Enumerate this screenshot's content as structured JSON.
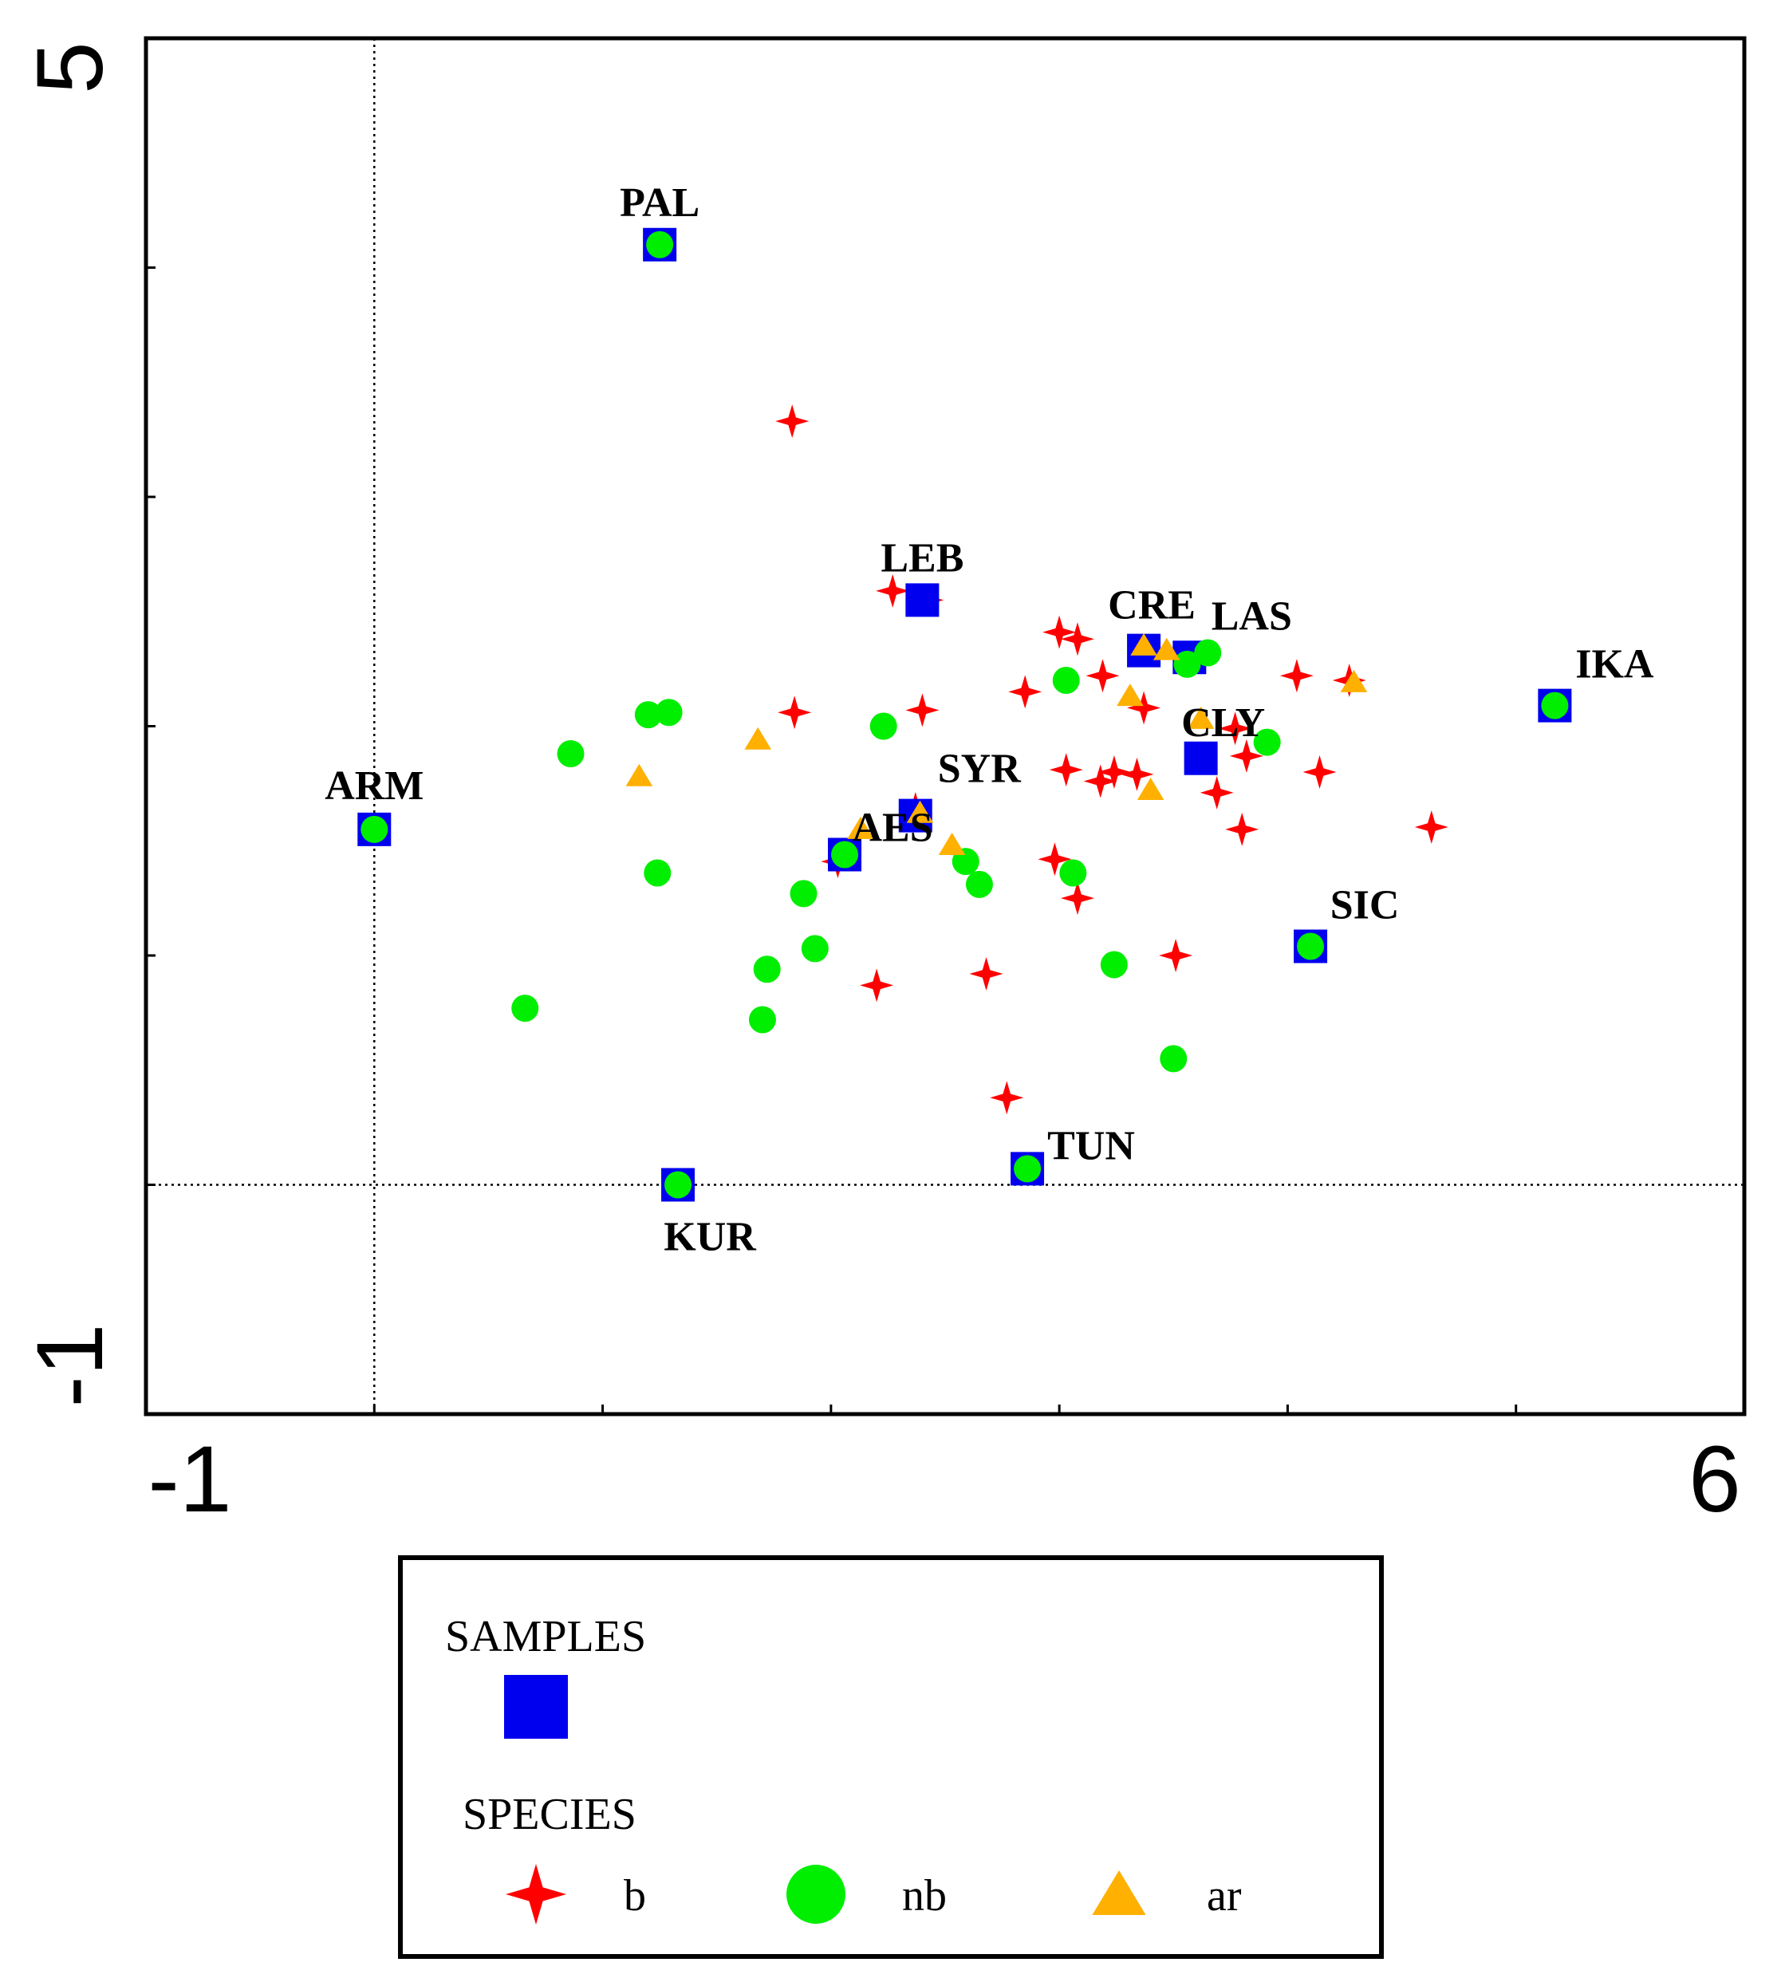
{
  "chart_data": {
    "type": "scatter",
    "title": "",
    "xlabel": "",
    "ylabel": "",
    "xlim": [
      -1,
      6
    ],
    "ylim": [
      -1,
      5
    ],
    "x_tick_labels": [
      "-1",
      "6"
    ],
    "y_tick_labels": [
      "-1",
      "5"
    ],
    "reference_lines": {
      "x": 0,
      "y": 0
    },
    "grid": false,
    "legend_position": "bottom",
    "legend": {
      "samples_heading": "SAMPLES",
      "species_heading": "SPECIES",
      "entries": [
        {
          "key": "b",
          "label": "b",
          "marker": "star",
          "color": "#ff0000"
        },
        {
          "key": "nb",
          "label": "nb",
          "marker": "circle",
          "color": "#00ee00"
        },
        {
          "key": "ar",
          "label": "ar",
          "marker": "triangle",
          "color": "#ffb000"
        }
      ],
      "samples_color": "#0000ee"
    },
    "samples": [
      {
        "name": "PAL",
        "x": 1.25,
        "y": 4.1
      },
      {
        "name": "ARM",
        "x": 0.0,
        "y": 1.55
      },
      {
        "name": "LEB",
        "x": 2.4,
        "y": 2.55
      },
      {
        "name": "CRE",
        "x": 3.37,
        "y": 2.33
      },
      {
        "name": "LAS",
        "x": 3.57,
        "y": 2.3
      },
      {
        "name": "IKA",
        "x": 5.17,
        "y": 2.09
      },
      {
        "name": "CLY",
        "x": 3.62,
        "y": 1.86
      },
      {
        "name": "SYR",
        "x": 2.37,
        "y": 1.61
      },
      {
        "name": "AES",
        "x": 2.06,
        "y": 1.44
      },
      {
        "name": "SIC",
        "x": 4.1,
        "y": 1.04
      },
      {
        "name": "TUN",
        "x": 2.86,
        "y": 0.07
      },
      {
        "name": "KUR",
        "x": 1.33,
        "y": 0.0
      }
    ],
    "series": [
      {
        "name": "b",
        "points": [
          [
            1.83,
            3.33
          ],
          [
            2.27,
            2.59
          ],
          [
            2.42,
            2.55
          ],
          [
            1.84,
            2.06
          ],
          [
            2.4,
            2.07
          ],
          [
            3.0,
            2.41
          ],
          [
            3.08,
            2.38
          ],
          [
            3.19,
            2.22
          ],
          [
            2.85,
            2.15
          ],
          [
            3.37,
            2.08
          ],
          [
            3.77,
            1.99
          ],
          [
            4.04,
            2.22
          ],
          [
            4.27,
            2.2
          ],
          [
            3.82,
            1.87
          ],
          [
            3.69,
            1.71
          ],
          [
            3.8,
            1.55
          ],
          [
            4.14,
            1.8
          ],
          [
            3.03,
            1.81
          ],
          [
            3.18,
            1.76
          ],
          [
            3.24,
            1.8
          ],
          [
            3.34,
            1.79
          ],
          [
            4.63,
            1.56
          ],
          [
            2.37,
            1.64
          ],
          [
            2.03,
            1.41
          ],
          [
            2.98,
            1.42
          ],
          [
            3.08,
            1.25
          ],
          [
            3.51,
            1.0
          ],
          [
            2.2,
            0.87
          ],
          [
            2.68,
            0.92
          ],
          [
            2.77,
            0.38
          ]
        ]
      },
      {
        "name": "nb",
        "points": [
          [
            1.25,
            4.1
          ],
          [
            0.0,
            1.55
          ],
          [
            3.56,
            2.27
          ],
          [
            3.65,
            2.32
          ],
          [
            3.03,
            2.2
          ],
          [
            5.17,
            2.09
          ],
          [
            3.91,
            1.93
          ],
          [
            2.23,
            2.0
          ],
          [
            1.2,
            2.05
          ],
          [
            1.29,
            2.06
          ],
          [
            0.86,
            1.88
          ],
          [
            1.24,
            1.36
          ],
          [
            2.06,
            1.44
          ],
          [
            1.88,
            1.27
          ],
          [
            2.59,
            1.41
          ],
          [
            2.65,
            1.31
          ],
          [
            3.06,
            1.36
          ],
          [
            1.93,
            1.03
          ],
          [
            1.72,
            0.94
          ],
          [
            0.66,
            0.77
          ],
          [
            1.7,
            0.72
          ],
          [
            3.24,
            0.96
          ],
          [
            3.5,
            0.55
          ],
          [
            4.1,
            1.04
          ],
          [
            2.86,
            0.07
          ],
          [
            1.33,
            0.0
          ]
        ]
      },
      {
        "name": "ar",
        "points": [
          [
            3.37,
            2.35
          ],
          [
            3.47,
            2.33
          ],
          [
            3.31,
            2.13
          ],
          [
            3.62,
            2.03
          ],
          [
            1.68,
            1.94
          ],
          [
            1.16,
            1.78
          ],
          [
            3.4,
            1.72
          ],
          [
            2.13,
            1.55
          ],
          [
            2.39,
            1.62
          ],
          [
            2.53,
            1.48
          ],
          [
            4.29,
            2.19
          ]
        ]
      }
    ]
  }
}
